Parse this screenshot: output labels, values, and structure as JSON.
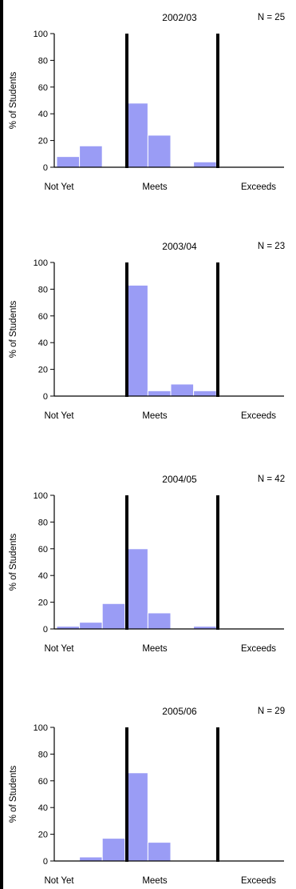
{
  "chart_data": [
    {
      "type": "bar",
      "title": "2002/03",
      "n_label": "N = 25",
      "ylabel": "% of Students",
      "ylim": [
        0,
        100
      ],
      "yticks": [
        0,
        20,
        40,
        60,
        80,
        100
      ],
      "x_labels": [
        "Not Yet",
        "Meets",
        "Exceeds"
      ],
      "values": [
        8,
        16,
        0,
        48,
        24,
        0,
        4,
        0,
        0,
        0
      ],
      "bar_color": "#9a9cf5",
      "divider_color": "#000000"
    },
    {
      "type": "bar",
      "title": "2003/04",
      "n_label": "N = 23",
      "ylabel": "% of Students",
      "ylim": [
        0,
        100
      ],
      "yticks": [
        0,
        20,
        40,
        60,
        80,
        100
      ],
      "x_labels": [
        "Not Yet",
        "Meets",
        "Exceeds"
      ],
      "values": [
        0,
        0,
        0,
        83,
        4,
        9,
        4,
        0,
        0,
        0
      ],
      "bar_color": "#9a9cf5",
      "divider_color": "#000000"
    },
    {
      "type": "bar",
      "title": "2004/05",
      "n_label": "N = 42",
      "ylabel": "% of Students",
      "ylim": [
        0,
        100
      ],
      "yticks": [
        0,
        20,
        40,
        60,
        80,
        100
      ],
      "x_labels": [
        "Not Yet",
        "Meets",
        "Exceeds"
      ],
      "values": [
        2,
        5,
        19,
        60,
        12,
        0,
        2,
        0,
        0,
        0
      ],
      "bar_color": "#9a9cf5",
      "divider_color": "#000000"
    },
    {
      "type": "bar",
      "title": "2005/06",
      "n_label": "N = 29",
      "ylabel": "% of Students",
      "ylim": [
        0,
        100
      ],
      "yticks": [
        0,
        20,
        40,
        60,
        80,
        100
      ],
      "x_labels": [
        "Not Yet",
        "Meets",
        "Exceeds"
      ],
      "values": [
        0,
        3,
        17,
        66,
        14,
        0,
        0,
        0,
        0,
        0
      ],
      "bar_color": "#9a9cf5",
      "divider_color": "#000000"
    }
  ]
}
